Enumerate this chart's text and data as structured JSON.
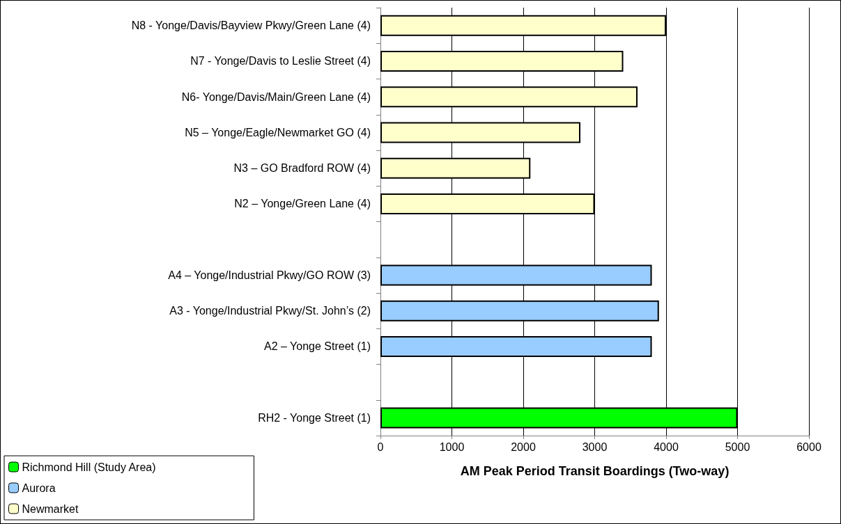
{
  "chart_data": {
    "type": "bar",
    "orientation": "horizontal",
    "xlabel": "AM Peak Period Transit Boardings (Two-way)",
    "categories": [
      "N8 - Yonge/Davis/Bayview Pkwy/Green Lane (4)",
      "N7 - Yonge/Davis to Leslie Street (4)",
      "N6- Yonge/Davis/Main/Green Lane (4)",
      "N5 – Yonge/Eagle/Newmarket GO (4)",
      "N3 – GO Bradford ROW (4)",
      "N2 – Yonge/Green Lane (4)",
      null,
      "A4 – Yonge/Industrial Pkwy/GO ROW (3)",
      "A3 - Yonge/Industrial Pkwy/St. John’s (2)",
      "A2 – Yonge Street (1)",
      null,
      "RH2 - Yonge Street (1)"
    ],
    "series": [
      {
        "name": "Richmond Hill (Study Area)",
        "color": "#00ff00",
        "values": [
          null,
          null,
          null,
          null,
          null,
          null,
          null,
          null,
          null,
          null,
          null,
          5000
        ]
      },
      {
        "name": "Aurora",
        "color": "#99ccff",
        "values": [
          null,
          null,
          null,
          null,
          null,
          null,
          null,
          3800,
          3900,
          3800,
          null,
          null
        ]
      },
      {
        "name": "Newmarket",
        "color": "#ffffcc",
        "values": [
          4000,
          3400,
          3600,
          2800,
          2100,
          3000,
          null,
          null,
          null,
          null,
          null,
          null
        ]
      }
    ],
    "xlim": [
      0,
      6000
    ],
    "xticks": [
      0,
      1000,
      2000,
      3000,
      4000,
      5000,
      6000
    ],
    "grid": "x",
    "legend": "bottom left"
  }
}
